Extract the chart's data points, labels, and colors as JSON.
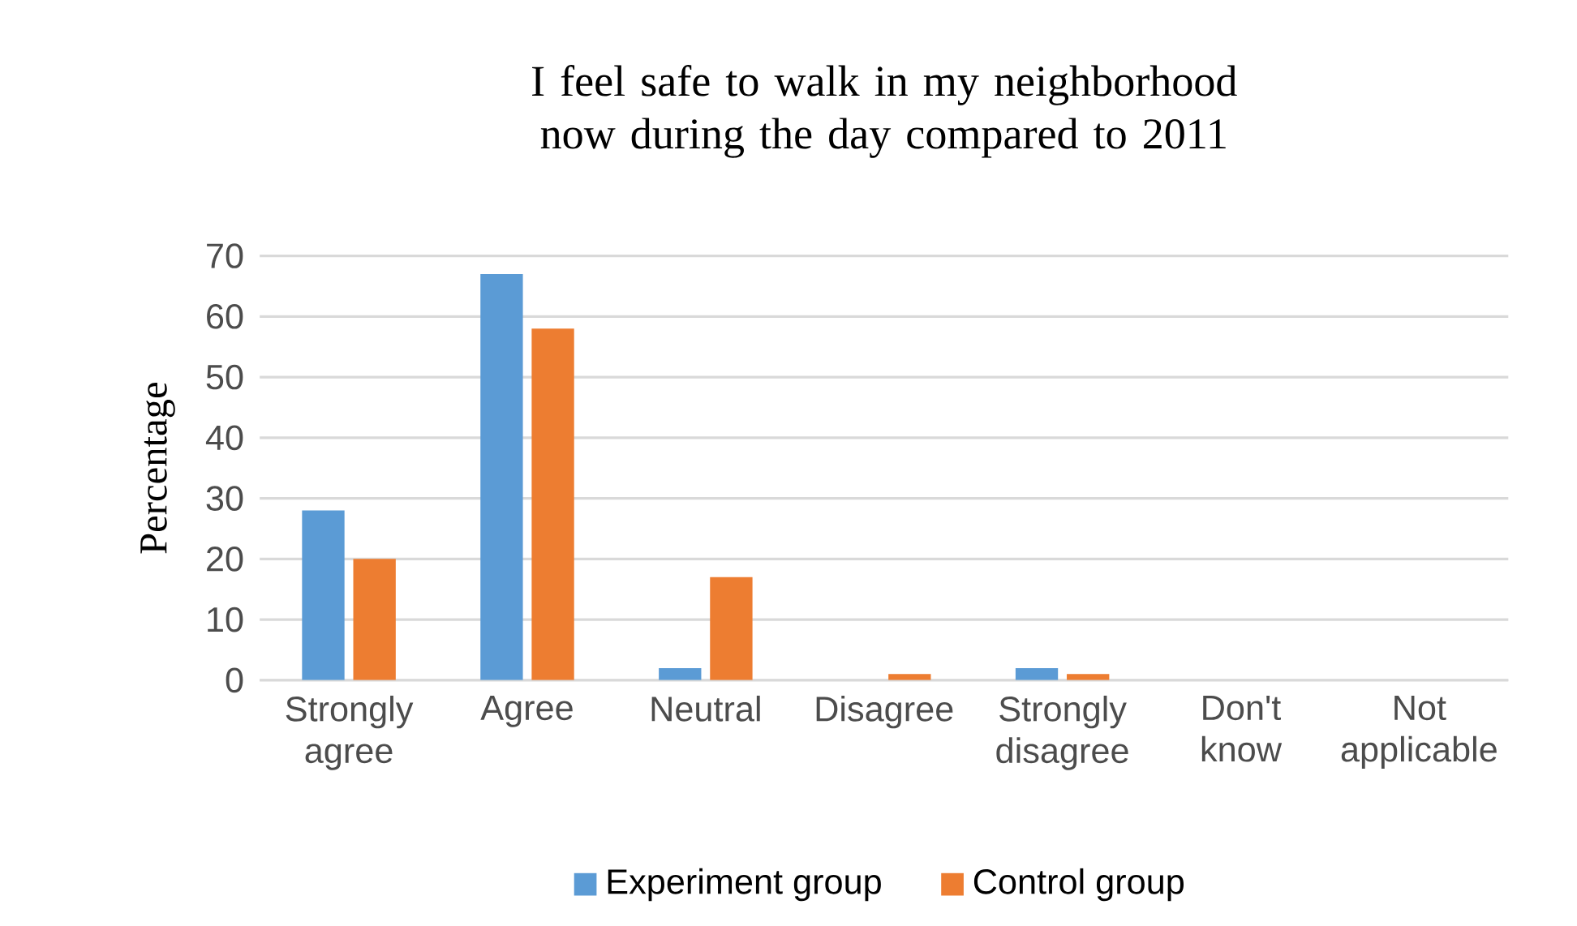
{
  "chart_data": {
    "type": "bar",
    "title": "I feel safe to walk in my neighborhood now during the day compared to 2011",
    "ylabel": "Percentage",
    "categories": [
      "Strongly agree",
      "Agree",
      "Neutral",
      "Disagree",
      "Strongly disagree",
      "Don't know",
      "Not applicable"
    ],
    "series": [
      {
        "name": "Experiment group",
        "color": "#5b9bd5",
        "values": [
          28,
          67,
          2,
          0,
          2,
          0,
          0
        ]
      },
      {
        "name": "Control group",
        "color": "#ed7d31",
        "values": [
          20,
          58,
          17,
          1,
          1,
          0,
          0
        ]
      }
    ],
    "ylim": [
      0,
      70
    ],
    "yticks": [
      0,
      10,
      20,
      30,
      40,
      50,
      60,
      70
    ],
    "grid": "y",
    "legend": "bottom"
  }
}
